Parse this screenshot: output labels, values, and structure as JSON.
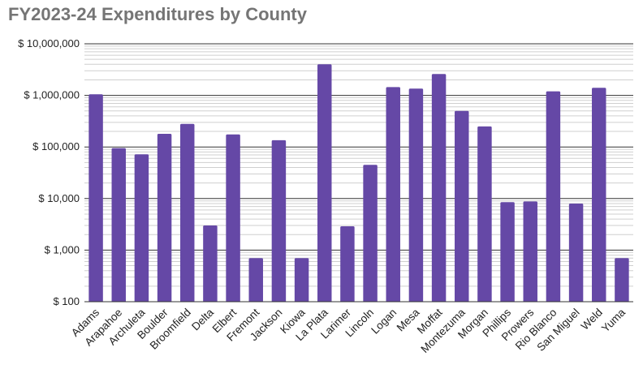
{
  "chart_data": {
    "type": "bar",
    "title": "FY2023-24 Expenditures by County",
    "xlabel": "",
    "ylabel": "",
    "scale": "log",
    "ylim": [
      100,
      10000000
    ],
    "grid": true,
    "legend": "none",
    "bar_color": "#6548a6",
    "yticks": [
      {
        "value": 100,
        "label": "$ 100"
      },
      {
        "value": 1000,
        "label": "$ 1,000"
      },
      {
        "value": 10000,
        "label": "$ 10,000"
      },
      {
        "value": 100000,
        "label": "$ 100,000"
      },
      {
        "value": 1000000,
        "label": "$ 1,000,000"
      },
      {
        "value": 10000000,
        "label": "$ 10,000,000"
      }
    ],
    "categories": [
      "Adams",
      "Arapahoe",
      "Archuleta",
      "Boulder",
      "Broomfield",
      "Delta",
      "Elbert",
      "Fremont",
      "Jackson",
      "Kiowa",
      "La Plata",
      "Larimer",
      "Lincoln",
      "Logan",
      "Mesa",
      "Moffat",
      "Montezuma",
      "Morgan",
      "Phillips",
      "Prowers",
      "Rio Blanco",
      "San Miguel",
      "Weld",
      "Yuma"
    ],
    "values": [
      1050000,
      95000,
      72000,
      180000,
      280000,
      3000,
      175000,
      700,
      135000,
      700,
      4000000,
      2900,
      45000,
      1450000,
      1350000,
      2600000,
      500000,
      250000,
      8500,
      8800,
      1200000,
      8000,
      1400000,
      700
    ]
  }
}
